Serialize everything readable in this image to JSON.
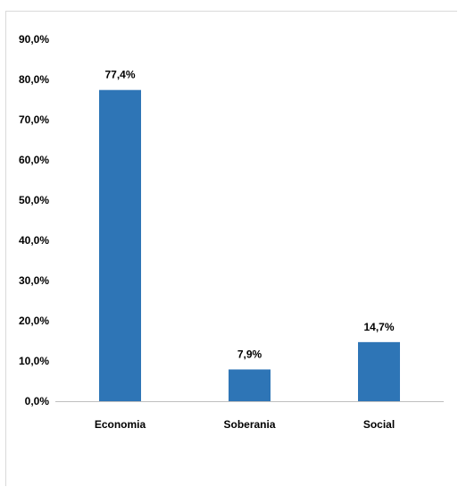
{
  "chart_data": {
    "type": "bar",
    "categories": [
      "Economia",
      "Soberania",
      "Social"
    ],
    "values": [
      77.4,
      7.9,
      14.7
    ],
    "data_labels": [
      "77,4%",
      "7,9%",
      "14,7%"
    ],
    "title": "",
    "xlabel": "",
    "ylabel": "",
    "ylim": [
      0,
      90
    ],
    "y_ticks": [
      "0,0%",
      "10,0%",
      "20,0%",
      "30,0%",
      "40,0%",
      "50,0%",
      "60,0%",
      "70,0%",
      "80,0%",
      "90,0%"
    ],
    "grid": false,
    "legend": "none",
    "bar_color": "#2e75b6"
  }
}
